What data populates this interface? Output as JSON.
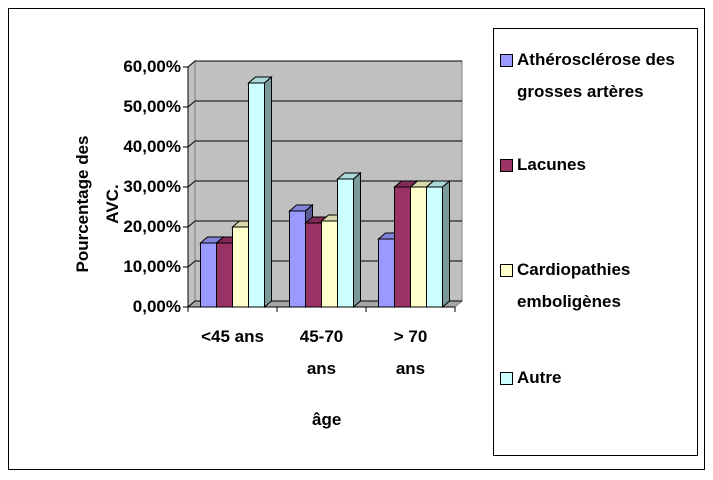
{
  "chart_data": {
    "type": "bar3d",
    "x_label": "âge",
    "y_label": "Pourcentage des AVC.",
    "categories": [
      "<45 ans",
      "45-70 ans",
      "> 70 ans"
    ],
    "series": [
      {
        "name": "Athérosclérose des grosses artères",
        "color": "#9999ff",
        "values": [
          16,
          24,
          17
        ]
      },
      {
        "name": "Lacunes",
        "color": "#993366",
        "values": [
          16,
          21,
          30
        ]
      },
      {
        "name": "Cardiopathies emboligènes",
        "color": "#ffffcc",
        "values": [
          20,
          21.5,
          30
        ]
      },
      {
        "name": "Autre",
        "color": "#ccffff",
        "values": [
          56,
          32,
          30
        ]
      }
    ],
    "ylim": [
      0,
      60
    ],
    "yticks": [
      {
        "value": 0,
        "label": "0,00%"
      },
      {
        "value": 10,
        "label": "10,00%"
      },
      {
        "value": 20,
        "label": "20,00%"
      },
      {
        "value": 30,
        "label": "30,00%"
      },
      {
        "value": 40,
        "label": "40,00%"
      },
      {
        "value": 50,
        "label": "50,00%"
      },
      {
        "value": 60,
        "label": "60,00%"
      }
    ],
    "grid": true
  }
}
